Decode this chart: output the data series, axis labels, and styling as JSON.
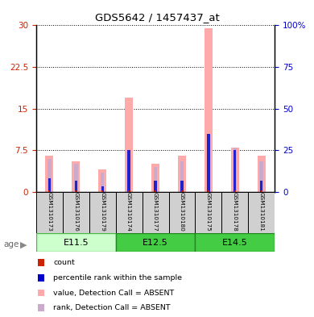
{
  "title": "GDS5642 / 1457437_at",
  "samples": [
    "GSM1310173",
    "GSM1310176",
    "GSM1310179",
    "GSM1310174",
    "GSM1310177",
    "GSM1310180",
    "GSM1310175",
    "GSM1310178",
    "GSM1310181"
  ],
  "value_absent": [
    6.5,
    5.5,
    4.0,
    17.0,
    5.0,
    6.5,
    29.5,
    8.0,
    6.5
  ],
  "rank_absent": [
    6.0,
    5.0,
    3.5,
    7.5,
    4.5,
    5.5,
    10.5,
    8.0,
    5.5
  ],
  "blue_bar": [
    2.5,
    2.0,
    1.0,
    7.5,
    2.0,
    2.0,
    10.5,
    7.5,
    2.0
  ],
  "red_bar": [
    0.25,
    0.25,
    0.25,
    0.25,
    0.25,
    0.25,
    0.25,
    0.25,
    0.25
  ],
  "ylim_left": [
    0,
    30
  ],
  "ylim_right": [
    0,
    100
  ],
  "yticks_left": [
    0,
    7.5,
    15,
    22.5,
    30
  ],
  "ytick_labels_left": [
    "0",
    "7.5",
    "15",
    "22.5",
    "30"
  ],
  "yticks_right": [
    0,
    25,
    50,
    75,
    100
  ],
  "ytick_labels_right": [
    "0",
    "25",
    "50",
    "75",
    "100%"
  ],
  "left_tick_color": "#cc2200",
  "right_tick_color": "#0000cc",
  "group_defs": [
    {
      "label": "E11.5",
      "start": 0,
      "end": 2,
      "facecolor": "#ccffcc",
      "edgecolor": "#44bb44"
    },
    {
      "label": "E12.5",
      "start": 3,
      "end": 5,
      "facecolor": "#44cc44",
      "edgecolor": "#228822"
    },
    {
      "label": "E14.5",
      "start": 6,
      "end": 8,
      "facecolor": "#44cc44",
      "edgecolor": "#228822"
    }
  ],
  "legend_colors": [
    "#cc2200",
    "#0000cc",
    "#ffaaaa",
    "#ccaacc"
  ],
  "legend_labels": [
    "count",
    "percentile rank within the sample",
    "value, Detection Call = ABSENT",
    "rank, Detection Call = ABSENT"
  ],
  "age_label": "age"
}
